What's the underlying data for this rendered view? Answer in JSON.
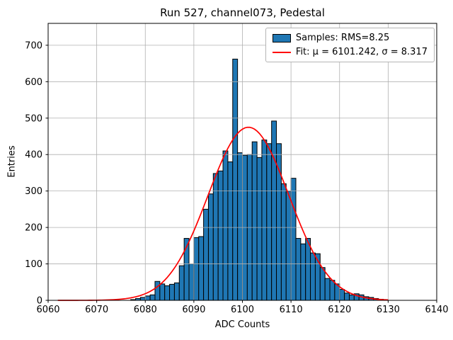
{
  "chart_data": {
    "type": "bar",
    "title": "Run 527, channel073, Pedestal",
    "xlabel": "ADC Counts",
    "ylabel": "Entries",
    "xlim": [
      6060,
      6140
    ],
    "ylim": [
      0,
      760
    ],
    "xticks": [
      6060,
      6070,
      6080,
      6090,
      6100,
      6110,
      6120,
      6130,
      6140
    ],
    "yticks": [
      0,
      100,
      200,
      300,
      400,
      500,
      600,
      700
    ],
    "grid": true,
    "bin_start": 6077,
    "bin_width": 1,
    "counts": [
      2,
      5,
      8,
      12,
      15,
      52,
      45,
      40,
      44,
      48,
      95,
      170,
      100,
      172,
      175,
      250,
      292,
      348,
      355,
      410,
      380,
      662,
      405,
      398,
      400,
      435,
      392,
      440,
      430,
      492,
      430,
      320,
      300,
      335,
      170,
      155,
      170,
      130,
      128,
      90,
      60,
      55,
      45,
      30,
      20,
      15,
      18,
      15,
      10,
      8,
      5,
      3
    ],
    "fit": {
      "mu": 6101.242,
      "sigma": 8.317,
      "amplitude": 475,
      "x_start": 6062,
      "x_end": 6130
    },
    "colors": {
      "bar_fill": "#1f77b4",
      "bar_edge": "#000000",
      "fit_line": "#ff0000",
      "grid": "#b0b0b0",
      "axis": "#000000"
    },
    "legend": {
      "position": "top-right",
      "entries": [
        {
          "swatch": "patch",
          "label": "Samples: RMS=8.25"
        },
        {
          "swatch": "line",
          "label": "Fit: μ = 6101.242, σ = 8.317"
        }
      ]
    }
  }
}
